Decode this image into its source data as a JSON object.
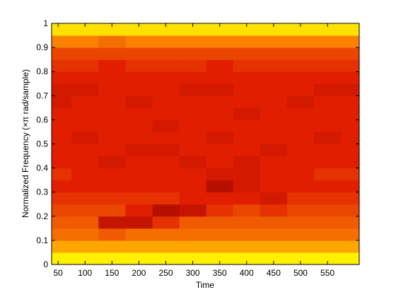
{
  "chart_data": {
    "type": "heatmap",
    "xlabel": "Time",
    "ylabel": "Normalized Frequency  (×π rad/sample)",
    "xlim": [
      38,
      609
    ],
    "ylim": [
      0,
      1
    ],
    "xticks": [
      50,
      100,
      150,
      200,
      250,
      300,
      350,
      400,
      450,
      500,
      550
    ],
    "yticks": [
      0,
      0.1,
      0.2,
      0.3,
      0.4,
      0.5,
      0.6,
      0.7,
      0.8,
      0.9,
      1
    ],
    "x": [
      50,
      100,
      150,
      200,
      250,
      300,
      350,
      400,
      450,
      500,
      550,
      600
    ],
    "y": [
      0.025,
      0.075,
      0.125,
      0.175,
      0.225,
      0.275,
      0.325,
      0.375,
      0.425,
      0.475,
      0.525,
      0.575,
      0.625,
      0.675,
      0.725,
      0.775,
      0.825,
      0.875,
      0.925,
      0.975
    ],
    "z": [
      [
        0.9,
        0.9,
        0.9,
        0.9,
        0.9,
        0.9,
        0.9,
        0.9,
        0.9,
        0.9,
        0.9,
        0.9
      ],
      [
        0.65,
        0.65,
        0.65,
        0.65,
        0.65,
        0.65,
        0.65,
        0.65,
        0.65,
        0.65,
        0.65,
        0.65
      ],
      [
        0.5,
        0.5,
        0.45,
        0.5,
        0.5,
        0.5,
        0.5,
        0.5,
        0.5,
        0.5,
        0.5,
        0.5
      ],
      [
        0.45,
        0.45,
        0.2,
        0.2,
        0.35,
        0.45,
        0.45,
        0.45,
        0.45,
        0.45,
        0.45,
        0.45
      ],
      [
        0.4,
        0.4,
        0.4,
        0.3,
        0.15,
        0.2,
        0.35,
        0.4,
        0.35,
        0.4,
        0.4,
        0.4
      ],
      [
        0.35,
        0.35,
        0.35,
        0.35,
        0.35,
        0.3,
        0.3,
        0.3,
        0.25,
        0.35,
        0.35,
        0.35
      ],
      [
        0.3,
        0.3,
        0.3,
        0.3,
        0.3,
        0.3,
        0.15,
        0.25,
        0.3,
        0.3,
        0.3,
        0.3
      ],
      [
        0.35,
        0.3,
        0.3,
        0.3,
        0.3,
        0.3,
        0.25,
        0.25,
        0.3,
        0.3,
        0.35,
        0.35
      ],
      [
        0.3,
        0.3,
        0.25,
        0.3,
        0.3,
        0.25,
        0.3,
        0.25,
        0.3,
        0.3,
        0.3,
        0.3
      ],
      [
        0.3,
        0.3,
        0.3,
        0.25,
        0.25,
        0.3,
        0.3,
        0.3,
        0.25,
        0.3,
        0.3,
        0.3
      ],
      [
        0.3,
        0.25,
        0.3,
        0.3,
        0.3,
        0.3,
        0.25,
        0.3,
        0.3,
        0.3,
        0.25,
        0.3
      ],
      [
        0.3,
        0.3,
        0.3,
        0.3,
        0.25,
        0.3,
        0.3,
        0.3,
        0.3,
        0.3,
        0.3,
        0.3
      ],
      [
        0.3,
        0.3,
        0.3,
        0.3,
        0.3,
        0.3,
        0.3,
        0.25,
        0.3,
        0.3,
        0.3,
        0.3
      ],
      [
        0.25,
        0.3,
        0.3,
        0.25,
        0.3,
        0.3,
        0.3,
        0.3,
        0.3,
        0.25,
        0.3,
        0.3
      ],
      [
        0.25,
        0.25,
        0.3,
        0.3,
        0.3,
        0.25,
        0.25,
        0.3,
        0.3,
        0.3,
        0.25,
        0.25
      ],
      [
        0.3,
        0.3,
        0.3,
        0.3,
        0.3,
        0.3,
        0.3,
        0.3,
        0.3,
        0.3,
        0.3,
        0.3
      ],
      [
        0.35,
        0.35,
        0.3,
        0.35,
        0.35,
        0.35,
        0.3,
        0.35,
        0.35,
        0.35,
        0.35,
        0.35
      ],
      [
        0.4,
        0.4,
        0.4,
        0.4,
        0.4,
        0.4,
        0.4,
        0.4,
        0.4,
        0.4,
        0.4,
        0.4
      ],
      [
        0.55,
        0.55,
        0.5,
        0.55,
        0.55,
        0.55,
        0.55,
        0.55,
        0.55,
        0.55,
        0.55,
        0.55
      ],
      [
        0.85,
        0.85,
        0.85,
        0.85,
        0.85,
        0.85,
        0.85,
        0.85,
        0.85,
        0.85,
        0.85,
        0.85
      ]
    ]
  }
}
